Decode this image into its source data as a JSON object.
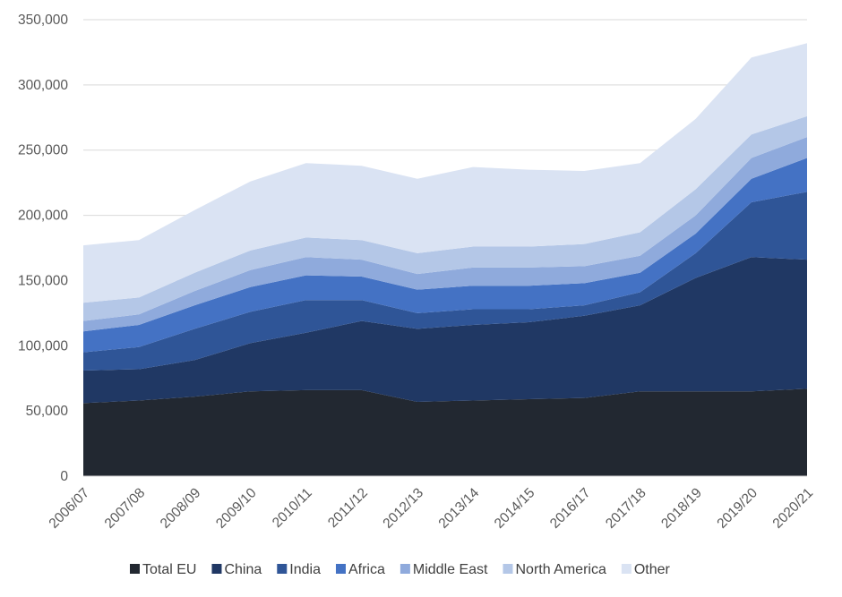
{
  "chart_data": {
    "type": "area",
    "stacked": true,
    "title": "",
    "xlabel": "",
    "ylabel": "",
    "ylim": [
      0,
      350000
    ],
    "yticks": [
      0,
      50000,
      100000,
      150000,
      200000,
      250000,
      300000,
      350000
    ],
    "ytick_labels": [
      "0",
      "50,000",
      "100,000",
      "150,000",
      "200,000",
      "250,000",
      "300,000",
      "350,000"
    ],
    "grid": true,
    "legend_position": "bottom",
    "categories": [
      "2006/07",
      "2007/08",
      "2008/09",
      "2009/10",
      "2010/11",
      "2011/12",
      "2012/13",
      "2013/14",
      "2014/15",
      "2016/17",
      "2017/18",
      "2018/19",
      "2019/20",
      "2020/21"
    ],
    "series": [
      {
        "name": "Total EU",
        "color": "#222831",
        "values": [
          56000,
          58000,
          61000,
          65000,
          66000,
          66000,
          57000,
          58000,
          59000,
          60000,
          65000,
          65000,
          65000,
          67000
        ]
      },
      {
        "name": "China",
        "color": "#203864",
        "values": [
          25000,
          24000,
          28000,
          37000,
          44000,
          53000,
          56000,
          58000,
          59000,
          63000,
          66000,
          87000,
          103000,
          99000
        ]
      },
      {
        "name": "India",
        "color": "#2F5597",
        "values": [
          14000,
          17000,
          24000,
          24000,
          25000,
          16000,
          12000,
          12000,
          10000,
          8000,
          10000,
          19000,
          42000,
          52000
        ]
      },
      {
        "name": "Africa",
        "color": "#4472C4",
        "values": [
          16000,
          17000,
          18000,
          19000,
          19000,
          18000,
          18000,
          18000,
          18000,
          17000,
          15000,
          15000,
          18000,
          26000
        ]
      },
      {
        "name": "Middle East",
        "color": "#8FAADC",
        "values": [
          8000,
          8000,
          11000,
          13000,
          14000,
          13000,
          12000,
          14000,
          14000,
          13000,
          13000,
          14000,
          16000,
          16000
        ]
      },
      {
        "name": "North America",
        "color": "#B4C7E7",
        "values": [
          14000,
          13000,
          14000,
          15000,
          15000,
          15000,
          16000,
          16000,
          16000,
          17000,
          18000,
          20000,
          18000,
          16000
        ]
      },
      {
        "name": "Other",
        "color": "#DAE3F3",
        "values": [
          44000,
          44000,
          48000,
          53000,
          57000,
          57000,
          57000,
          61000,
          59000,
          56000,
          53000,
          54000,
          59000,
          56000
        ]
      }
    ]
  }
}
